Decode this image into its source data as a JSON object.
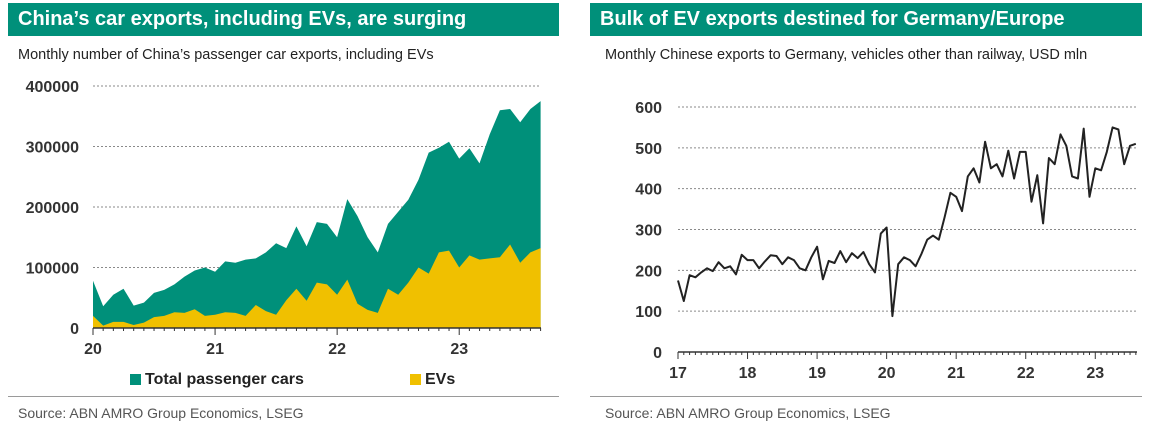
{
  "left_panel": {
    "title": "China’s car exports, including EVs, are surging",
    "subtitle": "Monthly number of China’s passenger car exports, including EVs",
    "source": "Source: ABN AMRO Group Economics, LSEG",
    "legend": [
      "Total passenger cars",
      "EVs"
    ]
  },
  "right_panel": {
    "title": "Bulk of EV exports destined for Germany/Europe",
    "subtitle": "Monthly Chinese exports to Germany, vehicles other than railway, USD mln",
    "source": "Source: ABN AMRO Group Economics, LSEG"
  },
  "colors": {
    "teal": "#00907a",
    "yellow": "#f0c000",
    "line": "#222222",
    "axis": "#444444"
  },
  "chart_data": [
    {
      "type": "area",
      "title": "China’s car exports, including EVs, are surging",
      "subtitle": "Monthly number of China’s passenger car exports, including EVs",
      "x_unit": "year (20 = 2020)",
      "x_ticks": [
        "20",
        "21",
        "22",
        "23"
      ],
      "xlim": [
        20,
        23.67
      ],
      "y_ticks": [
        "0",
        "100000",
        "200000",
        "300000",
        "400000"
      ],
      "ylim": [
        0,
        400000
      ],
      "x_start": 20.0,
      "x_step": 0.08333,
      "series": [
        {
          "name": "Total passenger cars",
          "color": "#00907a",
          "values": [
            78000,
            36000,
            55000,
            65000,
            37000,
            42000,
            58000,
            63000,
            72000,
            85000,
            95000,
            100000,
            93000,
            110000,
            108000,
            113000,
            115000,
            125000,
            140000,
            132000,
            168000,
            135000,
            175000,
            172000,
            150000,
            213000,
            185000,
            150000,
            125000,
            172000,
            192000,
            212000,
            245000,
            290000,
            298000,
            308000,
            280000,
            297000,
            272000,
            320000,
            360000,
            362000,
            340000,
            362000,
            375000
          ]
        },
        {
          "name": "EVs",
          "color": "#f0c000",
          "values": [
            20000,
            4000,
            10000,
            10000,
            5000,
            9000,
            18000,
            20000,
            26000,
            25000,
            31000,
            20000,
            22000,
            26000,
            25000,
            20000,
            38000,
            28000,
            22000,
            46000,
            65000,
            45000,
            75000,
            72000,
            55000,
            80000,
            40000,
            30000,
            25000,
            65000,
            55000,
            75000,
            100000,
            90000,
            125000,
            128000,
            100000,
            120000,
            113000,
            115000,
            117000,
            138000,
            108000,
            125000,
            132000
          ]
        }
      ],
      "legend_position": "bottom"
    },
    {
      "type": "line",
      "title": "Bulk of EV exports destined for Germany/Europe",
      "subtitle": "Monthly Chinese exports to Germany, vehicles other than railway, USD mln",
      "x_unit": "year (17 = 2017)",
      "x_ticks": [
        "17",
        "18",
        "19",
        "20",
        "21",
        "22",
        "23"
      ],
      "xlim": [
        17,
        23.6
      ],
      "y_ticks": [
        "0",
        "100",
        "200",
        "300",
        "400",
        "500",
        "600"
      ],
      "ylim": [
        0,
        600
      ],
      "x_start": 17.0,
      "x_step": 0.08333,
      "series": [
        {
          "name": "",
          "color": "#222222",
          "values": [
            175,
            125,
            188,
            183,
            195,
            205,
            198,
            220,
            205,
            210,
            190,
            238,
            225,
            225,
            205,
            222,
            237,
            235,
            215,
            232,
            225,
            205,
            200,
            232,
            258,
            178,
            223,
            218,
            247,
            220,
            242,
            230,
            245,
            215,
            195,
            290,
            305,
            88,
            215,
            232,
            225,
            210,
            240,
            275,
            285,
            275,
            330,
            390,
            380,
            345,
            430,
            450,
            415,
            515,
            450,
            460,
            430,
            493,
            425,
            490,
            490,
            368,
            433,
            315,
            475,
            460,
            533,
            505,
            430,
            425,
            547,
            380,
            450,
            445,
            490,
            550,
            545,
            460,
            505,
            510
          ]
        }
      ],
      "legend_position": "none"
    }
  ]
}
